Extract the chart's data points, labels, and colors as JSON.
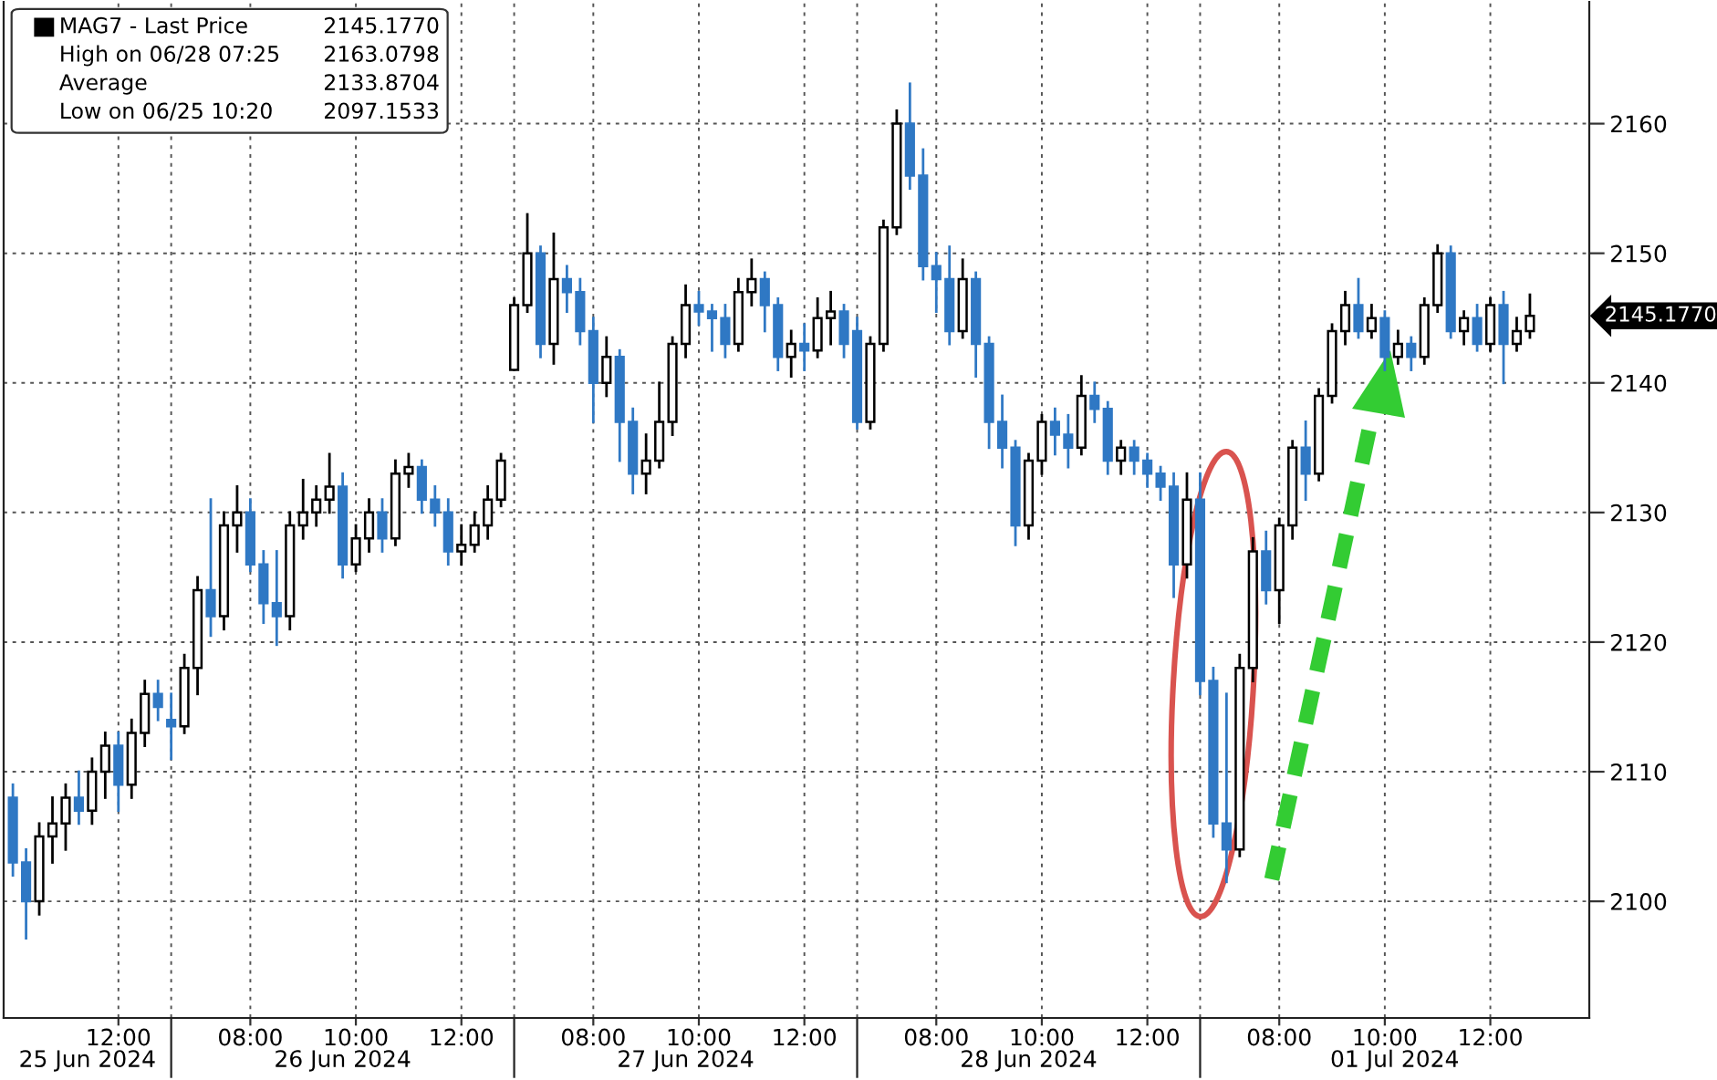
{
  "chart_data": {
    "type": "candlestick",
    "categories": [
      null,
      null,
      null,
      null,
      null,
      null,
      null,
      null,
      "12:00",
      null,
      null,
      null,
      null,
      null,
      null,
      null,
      null,
      null,
      "08:00",
      null,
      null,
      null,
      null,
      null,
      null,
      null,
      "10:00",
      null,
      null,
      null,
      null,
      null,
      null,
      null,
      "12:00",
      null,
      null,
      null,
      null,
      null,
      null,
      null,
      null,
      null,
      "08:00",
      null,
      null,
      null,
      null,
      null,
      null,
      null,
      "10:00",
      null,
      null,
      null,
      null,
      null,
      null,
      null,
      "12:00",
      null,
      null,
      null,
      null,
      null,
      null,
      null,
      null,
      null,
      "08:00",
      null,
      null,
      null,
      null,
      null,
      null,
      null,
      "10:00",
      null,
      null,
      null,
      null,
      null,
      null,
      null,
      "12:00",
      null,
      null,
      null,
      null,
      null,
      null,
      null,
      null,
      null,
      "08:00",
      null,
      null,
      null,
      null,
      null,
      null,
      null,
      "10:00",
      null,
      null,
      null,
      null,
      null,
      null,
      null,
      "12:00",
      null,
      null,
      null
    ],
    "series": [
      {
        "name": "MAG7 - Last Price",
        "color": "#000000",
        "ohlc": [
          [
            2108,
            2109,
            2102,
            2103
          ],
          [
            2103,
            2104,
            2097.15,
            2100
          ],
          [
            2100,
            2106,
            2099,
            2105
          ],
          [
            2105,
            2108,
            2103,
            2106
          ],
          [
            2106,
            2109,
            2104,
            2108
          ],
          [
            2108,
            2110,
            2106,
            2107
          ],
          [
            2107,
            2111,
            2106,
            2110
          ],
          [
            2110,
            2113,
            2108,
            2112
          ],
          [
            2112,
            2113,
            2107,
            2109
          ],
          [
            2109,
            2114,
            2108,
            2113
          ],
          [
            2113,
            2117,
            2112,
            2116
          ],
          [
            2116,
            2117,
            2114,
            2115
          ],
          [
            2114,
            2116,
            2111,
            2113.5
          ],
          [
            2113.5,
            2119,
            2113,
            2118
          ],
          [
            2118,
            2125,
            2116,
            2124
          ],
          [
            2124,
            2131,
            2120.5,
            2122
          ],
          [
            2122,
            2130,
            2121,
            2129
          ],
          [
            2129,
            2132,
            2127,
            2130
          ],
          [
            2130,
            2131,
            2125.5,
            2126
          ],
          [
            2126,
            2127,
            2121.5,
            2123
          ],
          [
            2123,
            2127,
            2119.8,
            2122
          ],
          [
            2122,
            2130,
            2121,
            2129
          ],
          [
            2129,
            2132.5,
            2128,
            2130
          ],
          [
            2130,
            2132,
            2129,
            2131
          ],
          [
            2131,
            2134.5,
            2130,
            2132
          ],
          [
            2132,
            2133,
            2125,
            2126
          ],
          [
            2126,
            2129,
            2125.5,
            2128
          ],
          [
            2128,
            2131,
            2127,
            2130
          ],
          [
            2130,
            2131,
            2127,
            2128
          ],
          [
            2128,
            2134,
            2127.5,
            2133
          ],
          [
            2133,
            2134.5,
            2132,
            2133.5
          ],
          [
            2133.5,
            2134,
            2130,
            2131
          ],
          [
            2131,
            2132,
            2129,
            2130
          ],
          [
            2130,
            2131,
            2126,
            2127
          ],
          [
            2127,
            2129,
            2126,
            2127.5
          ],
          [
            2127.5,
            2130,
            2127,
            2129
          ],
          [
            2129,
            2132,
            2128,
            2131
          ],
          [
            2131,
            2134.5,
            2130.5,
            2134
          ],
          [
            2141,
            2146.5,
            2141,
            2146
          ],
          [
            2146,
            2153,
            2145.5,
            2150
          ],
          [
            2150,
            2150.5,
            2142,
            2143
          ],
          [
            2143,
            2151.5,
            2141.5,
            2148
          ],
          [
            2148,
            2149,
            2145.5,
            2147
          ],
          [
            2147,
            2148,
            2143,
            2144
          ],
          [
            2144,
            2145,
            2137,
            2140
          ],
          [
            2140,
            2143.5,
            2139,
            2142
          ],
          [
            2142,
            2142.5,
            2134,
            2137
          ],
          [
            2137,
            2138,
            2131.5,
            2133
          ],
          [
            2133,
            2136,
            2131.5,
            2134
          ],
          [
            2134,
            2140,
            2133.5,
            2137
          ],
          [
            2137,
            2143.5,
            2136,
            2143
          ],
          [
            2143,
            2147.5,
            2142,
            2146
          ],
          [
            2146,
            2147,
            2144.5,
            2145.5
          ],
          [
            2145.5,
            2146,
            2142.5,
            2145
          ],
          [
            2145,
            2146,
            2142,
            2143
          ],
          [
            2143,
            2148,
            2142.5,
            2147
          ],
          [
            2147,
            2149.5,
            2146,
            2148
          ],
          [
            2148,
            2148.5,
            2144,
            2146
          ],
          [
            2146,
            2146.5,
            2141,
            2142
          ],
          [
            2142,
            2144,
            2140.5,
            2143
          ],
          [
            2143,
            2144.5,
            2141,
            2142.5
          ],
          [
            2142.5,
            2146.5,
            2142,
            2145
          ],
          [
            2145,
            2147,
            2143,
            2145.5
          ],
          [
            2145.5,
            2146,
            2142,
            2143
          ],
          [
            2144,
            2145,
            2136.5,
            2137
          ],
          [
            2137,
            2143.5,
            2136.5,
            2143
          ],
          [
            2143,
            2152.5,
            2142.5,
            2152
          ],
          [
            2152,
            2161,
            2151.5,
            2160
          ],
          [
            2160,
            2163.08,
            2155,
            2156
          ],
          [
            2156,
            2158,
            2148,
            2149
          ],
          [
            2149,
            2150,
            2145.5,
            2148
          ],
          [
            2148,
            2150.5,
            2143,
            2144
          ],
          [
            2144,
            2149.5,
            2143.5,
            2148
          ],
          [
            2148,
            2148.5,
            2140.5,
            2143
          ],
          [
            2143,
            2143.5,
            2135,
            2137
          ],
          [
            2137,
            2139,
            2133.5,
            2135
          ],
          [
            2135,
            2135.5,
            2127.5,
            2129
          ],
          [
            2129,
            2134.5,
            2128,
            2134
          ],
          [
            2134,
            2137.5,
            2133,
            2137
          ],
          [
            2137,
            2138,
            2134.5,
            2136
          ],
          [
            2136,
            2137.5,
            2133.5,
            2135
          ],
          [
            2135,
            2140.5,
            2134.5,
            2139
          ],
          [
            2139,
            2140,
            2137,
            2138
          ],
          [
            2138,
            2138.5,
            2133,
            2134
          ],
          [
            2134,
            2135.5,
            2133,
            2135
          ],
          [
            2135,
            2135.5,
            2133,
            2134
          ],
          [
            2134,
            2134.5,
            2132,
            2133
          ],
          [
            2133,
            2133.5,
            2131,
            2132
          ],
          [
            2132,
            2133,
            2123.5,
            2126
          ],
          [
            2126,
            2133,
            2125,
            2131
          ],
          [
            2131,
            2133,
            2116,
            2117
          ],
          [
            2117,
            2118,
            2105,
            2106
          ],
          [
            2106,
            2116,
            2101.5,
            2104
          ],
          [
            2104,
            2119,
            2103.5,
            2118
          ],
          [
            2118,
            2128,
            2117,
            2127
          ],
          [
            2127,
            2128.5,
            2123,
            2124
          ],
          [
            2124,
            2129.5,
            2121.5,
            2129
          ],
          [
            2129,
            2135.5,
            2128,
            2135
          ],
          [
            2135,
            2137,
            2131,
            2133
          ],
          [
            2133,
            2139.5,
            2132.5,
            2139
          ],
          [
            2139,
            2144.5,
            2138.5,
            2144
          ],
          [
            2144,
            2147,
            2143,
            2146
          ],
          [
            2146,
            2148,
            2143.5,
            2144
          ],
          [
            2144,
            2146,
            2143.5,
            2145
          ],
          [
            2145,
            2145.5,
            2141,
            2142
          ],
          [
            2142,
            2144,
            2141.5,
            2143
          ],
          [
            2143,
            2143.5,
            2141,
            2142
          ],
          [
            2142,
            2146.5,
            2141.5,
            2146
          ],
          [
            2146,
            2150.6,
            2145.5,
            2150
          ],
          [
            2150,
            2150.5,
            2143.5,
            2144
          ],
          [
            2144,
            2145.5,
            2143,
            2145
          ],
          [
            2145,
            2146,
            2142.5,
            2143
          ],
          [
            2143,
            2146.5,
            2142.5,
            2146
          ],
          [
            2146,
            2147,
            2140,
            2143
          ],
          [
            2143,
            2145,
            2142.5,
            2144
          ],
          [
            2144,
            2146.8,
            2143.5,
            2145.177
          ]
        ],
        "colors": [
          "#2f78c4",
          "#2f78c4",
          "#ffffff",
          "#ffffff",
          "#ffffff",
          "#2f78c4",
          "#ffffff",
          "#ffffff",
          "#2f78c4",
          "#ffffff",
          "#ffffff",
          "#2f78c4",
          "#2f78c4",
          "#ffffff",
          "#ffffff",
          "#2f78c4",
          "#ffffff",
          "#ffffff",
          "#2f78c4",
          "#2f78c4",
          "#2f78c4",
          "#ffffff",
          "#ffffff",
          "#ffffff",
          "#ffffff",
          "#2f78c4",
          "#ffffff",
          "#ffffff",
          "#2f78c4",
          "#ffffff",
          "#ffffff",
          "#2f78c4",
          "#2f78c4",
          "#2f78c4",
          "#ffffff",
          "#ffffff",
          "#ffffff",
          "#ffffff",
          "#ffffff",
          "#ffffff",
          "#2f78c4",
          "#ffffff",
          "#2f78c4",
          "#2f78c4",
          "#2f78c4",
          "#ffffff",
          "#2f78c4",
          "#2f78c4",
          "#ffffff",
          "#ffffff",
          "#ffffff",
          "#ffffff",
          "#2f78c4",
          "#2f78c4",
          "#2f78c4",
          "#ffffff",
          "#ffffff",
          "#2f78c4",
          "#2f78c4",
          "#ffffff",
          "#2f78c4",
          "#ffffff",
          "#ffffff",
          "#2f78c4",
          "#2f78c4",
          "#ffffff",
          "#ffffff",
          "#ffffff",
          "#2f78c4",
          "#2f78c4",
          "#2f78c4",
          "#2f78c4",
          "#ffffff",
          "#2f78c4",
          "#2f78c4",
          "#2f78c4",
          "#2f78c4",
          "#ffffff",
          "#ffffff",
          "#2f78c4",
          "#2f78c4",
          "#ffffff",
          "#2f78c4",
          "#2f78c4",
          "#ffffff",
          "#2f78c4",
          "#2f78c4",
          "#2f78c4",
          "#2f78c4",
          "#ffffff",
          "#2f78c4",
          "#2f78c4",
          "#2f78c4",
          "#ffffff",
          "#ffffff",
          "#2f78c4",
          "#ffffff",
          "#ffffff",
          "#2f78c4",
          "#ffffff",
          "#ffffff",
          "#ffffff",
          "#2f78c4",
          "#ffffff",
          "#2f78c4",
          "#ffffff",
          "#2f78c4",
          "#ffffff",
          "#ffffff",
          "#2f78c4",
          "#ffffff",
          "#2f78c4",
          "#ffffff",
          "#2f78c4",
          "#ffffff",
          "#ffffff"
        ]
      }
    ],
    "ylim": [
      2091,
      2169.4
    ],
    "yticks": [
      2100,
      2110,
      2120,
      2130,
      2140,
      2150,
      2160
    ],
    "grid": true,
    "legend": "top left",
    "annotations": [
      "2145.1770",
      "High on 06/28 07:25",
      "2163.0798",
      "Average",
      "2133.8704",
      "Low on 06/25 10:20",
      "2097.1533",
      "2145.1770",
      "25 Jun 2024",
      "26 Jun 2024",
      "27 Jun 2024",
      "28 Jun 2024",
      "01 Jul 2024"
    ]
  }
}
